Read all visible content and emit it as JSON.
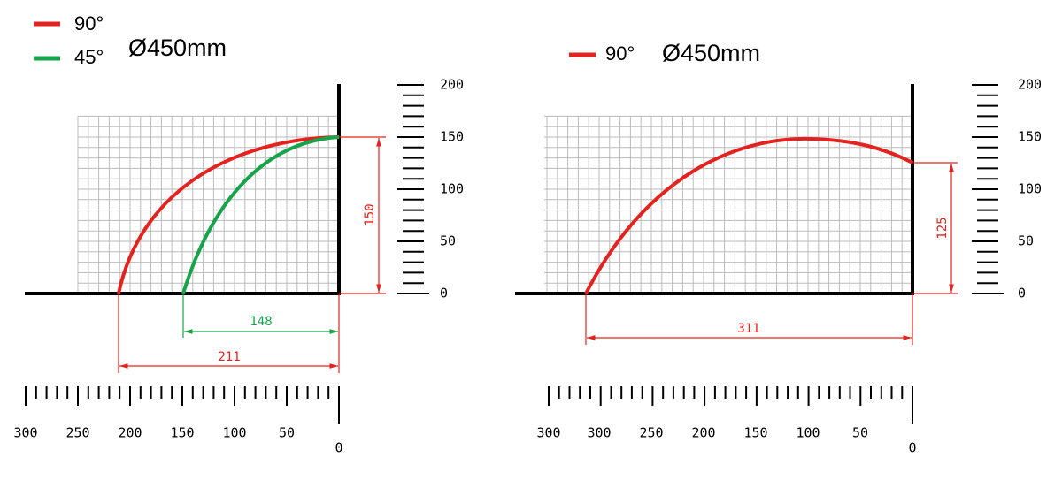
{
  "left": {
    "legend": [
      "90°",
      "45°"
    ],
    "diameter": "Ø450mm",
    "dimensions": {
      "height": 150,
      "throw_45": 148,
      "throw_90": 211
    },
    "vertical_scale": [
      200,
      150,
      100,
      50,
      0
    ],
    "horizontal_scale": [
      300,
      250,
      200,
      150,
      100,
      50,
      0
    ]
  },
  "right": {
    "legend": [
      "90°"
    ],
    "diameter": "Ø450mm",
    "dimensions": {
      "height": 125,
      "throw_90": 311
    },
    "vertical_scale": [
      200,
      150,
      100,
      50,
      0
    ],
    "horizontal_scale": [
      300,
      300,
      250,
      200,
      150,
      100,
      50,
      0
    ]
  }
}
